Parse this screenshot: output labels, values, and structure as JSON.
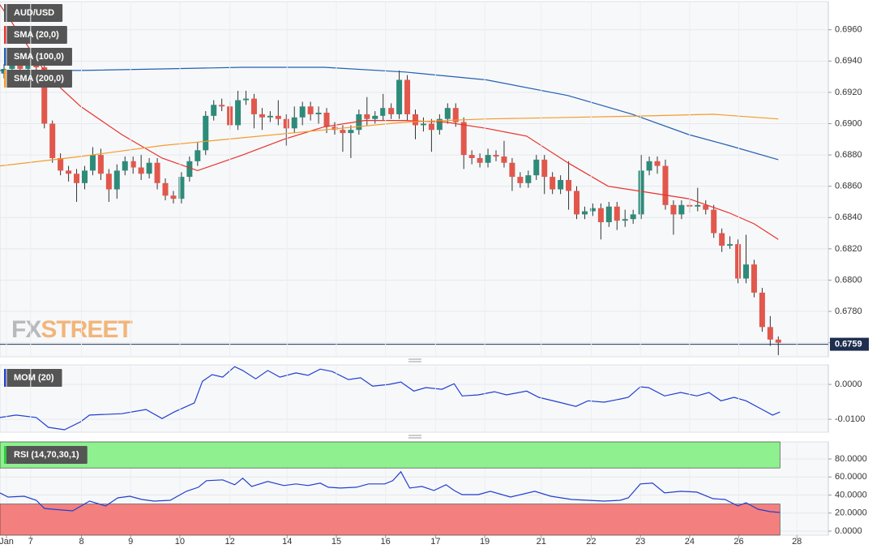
{
  "chart_data": [
    {
      "type": "candlestick",
      "name": "AUD/USD",
      "open": [
        0.6932,
        0.6935,
        0.694,
        0.6935,
        0.6938,
        0.6936,
        0.69,
        0.6878,
        0.687,
        0.6868,
        0.6862,
        0.687,
        0.688,
        0.6868,
        0.6858,
        0.687,
        0.6876,
        0.6872,
        0.6868,
        0.6875,
        0.6862,
        0.6854,
        0.6852,
        0.6866,
        0.6876,
        0.6883,
        0.6905,
        0.6912,
        0.6911,
        0.6899,
        0.6915,
        0.6916,
        0.6906,
        0.6904,
        0.6905,
        0.6903,
        0.6897,
        0.6904,
        0.6911,
        0.6906,
        0.6907,
        0.6898,
        0.6896,
        0.6894,
        0.6896,
        0.6906,
        0.6903,
        0.6905,
        0.691,
        0.6906,
        0.6928,
        0.6906,
        0.6899,
        0.69,
        0.6896,
        0.6903,
        0.691,
        0.6901,
        0.688,
        0.6878,
        0.6875,
        0.688,
        0.6879,
        0.6875,
        0.6866,
        0.6862,
        0.6867,
        0.6877,
        0.6866,
        0.6858,
        0.6864,
        0.6857,
        0.6842,
        0.6844,
        0.6846,
        0.6837,
        0.6847,
        0.6838,
        0.6839,
        0.6842,
        0.687,
        0.6876,
        0.6873,
        0.6848,
        0.6842,
        0.6848,
        0.6847,
        0.6848,
        0.6845,
        0.683,
        0.6822,
        0.6823,
        0.6801,
        0.681,
        0.6792,
        0.677,
        0.6762
      ],
      "high": [
        0.6938,
        0.6944,
        0.6943,
        0.6941,
        0.6941,
        0.694,
        0.6902,
        0.6881,
        0.6873,
        0.6871,
        0.6873,
        0.6885,
        0.6884,
        0.6871,
        0.6874,
        0.6879,
        0.6879,
        0.688,
        0.6878,
        0.6878,
        0.6865,
        0.6857,
        0.6869,
        0.6879,
        0.6888,
        0.6908,
        0.6915,
        0.6916,
        0.6914,
        0.6921,
        0.6921,
        0.6919,
        0.691,
        0.6908,
        0.6915,
        0.6906,
        0.6911,
        0.6914,
        0.6914,
        0.6911,
        0.691,
        0.6901,
        0.6899,
        0.6899,
        0.6909,
        0.6917,
        0.6908,
        0.6919,
        0.6913,
        0.6934,
        0.6931,
        0.6909,
        0.6904,
        0.6903,
        0.6906,
        0.6913,
        0.6913,
        0.6904,
        0.6883,
        0.6881,
        0.6884,
        0.6883,
        0.6889,
        0.6878,
        0.6869,
        0.687,
        0.688,
        0.688,
        0.6869,
        0.6867,
        0.6876,
        0.686,
        0.6847,
        0.6849,
        0.6849,
        0.685,
        0.685,
        0.6845,
        0.6845,
        0.688,
        0.6879,
        0.6879,
        0.6877,
        0.6851,
        0.6851,
        0.6852,
        0.6859,
        0.6851,
        0.6848,
        0.6833,
        0.6828,
        0.6826,
        0.6829,
        0.6813,
        0.6795,
        0.6777,
        0.6764
      ],
      "low": [
        0.6929,
        0.6932,
        0.6932,
        0.6932,
        0.6933,
        0.6897,
        0.6875,
        0.6867,
        0.6863,
        0.685,
        0.6858,
        0.6867,
        0.6864,
        0.685,
        0.6852,
        0.6867,
        0.6868,
        0.6864,
        0.6865,
        0.6858,
        0.6851,
        0.6849,
        0.6849,
        0.6863,
        0.6873,
        0.688,
        0.6902,
        0.6908,
        0.6896,
        0.6896,
        0.6912,
        0.6897,
        0.6896,
        0.6901,
        0.6899,
        0.6886,
        0.6894,
        0.6899,
        0.6902,
        0.69,
        0.6894,
        0.6893,
        0.6882,
        0.6878,
        0.6893,
        0.6899,
        0.69,
        0.6902,
        0.6903,
        0.6903,
        0.6902,
        0.689,
        0.6895,
        0.6882,
        0.6893,
        0.69,
        0.6898,
        0.6871,
        0.6874,
        0.6872,
        0.6872,
        0.6876,
        0.6872,
        0.6857,
        0.6859,
        0.6859,
        0.6864,
        0.6855,
        0.6855,
        0.6855,
        0.6845,
        0.6839,
        0.6839,
        0.6841,
        0.6826,
        0.6834,
        0.6832,
        0.6834,
        0.6836,
        0.6839,
        0.6867,
        0.6868,
        0.6845,
        0.6829,
        0.6839,
        0.6843,
        0.6844,
        0.6842,
        0.6827,
        0.6818,
        0.682,
        0.6798,
        0.6798,
        0.6789,
        0.6767,
        0.6758,
        0.6752
      ],
      "close": [
        0.6935,
        0.694,
        0.6935,
        0.6938,
        0.6936,
        0.69,
        0.6878,
        0.687,
        0.6868,
        0.6862,
        0.687,
        0.688,
        0.6868,
        0.6858,
        0.687,
        0.6876,
        0.6872,
        0.6868,
        0.6875,
        0.6862,
        0.6854,
        0.6852,
        0.6866,
        0.6876,
        0.6883,
        0.6905,
        0.6912,
        0.6911,
        0.6899,
        0.6915,
        0.6916,
        0.6906,
        0.6904,
        0.6905,
        0.6903,
        0.6897,
        0.6904,
        0.6911,
        0.6906,
        0.6907,
        0.6898,
        0.6896,
        0.6894,
        0.6896,
        0.6906,
        0.6903,
        0.6905,
        0.691,
        0.6906,
        0.6928,
        0.6906,
        0.6899,
        0.69,
        0.6896,
        0.6903,
        0.691,
        0.6901,
        0.688,
        0.6878,
        0.6875,
        0.688,
        0.6879,
        0.6875,
        0.6866,
        0.6862,
        0.6867,
        0.6877,
        0.6866,
        0.6858,
        0.6864,
        0.6857,
        0.6842,
        0.6844,
        0.6846,
        0.6837,
        0.6847,
        0.6838,
        0.6839,
        0.6842,
        0.687,
        0.6876,
        0.6873,
        0.6848,
        0.6842,
        0.6848,
        0.6847,
        0.6848,
        0.6845,
        0.683,
        0.6822,
        0.6823,
        0.6801,
        0.681,
        0.6792,
        0.677,
        0.6762,
        0.676
      ],
      "up_color": "#2e8b7a",
      "down_color": "#e2574c",
      "series": [
        {
          "name": "SMA (20,0)",
          "color": "#e8322a",
          "x": [
            -0.5,
            5.5,
            9.5,
            14.6,
            19.6,
            24,
            29.6,
            34.7,
            39.7,
            44.7,
            49.7,
            54.8,
            59.8,
            64.8,
            69.9,
            74.9,
            79.9,
            84.9,
            89.9,
            93,
            96
          ],
          "values": [
            0.6976,
            0.693,
            0.6911,
            0.6893,
            0.6878,
            0.687,
            0.688,
            0.689,
            0.6898,
            0.6902,
            0.6902,
            0.6901,
            0.6897,
            0.6892,
            0.6875,
            0.686,
            0.6856,
            0.6852,
            0.6843,
            0.6836,
            0.6826
          ]
        },
        {
          "name": "SMA (100,0)",
          "color": "#2060b0",
          "x": [
            -0.5,
            9.5,
            19.6,
            29.6,
            39.7,
            49.7,
            59.8,
            69.9,
            77.9,
            84.9,
            89.9,
            96
          ],
          "values": [
            0.6934,
            0.6934,
            0.6935,
            0.6936,
            0.6936,
            0.6933,
            0.6928,
            0.6918,
            0.6906,
            0.6893,
            0.6886,
            0.6877
          ]
        },
        {
          "name": "SMA (200,0)",
          "color": "#f39c2a",
          "x": [
            -0.5,
            9.5,
            19.6,
            29.6,
            39.7,
            49.7,
            59.8,
            69.9,
            79.9,
            87.9,
            96
          ],
          "values": [
            0.6873,
            0.6879,
            0.6886,
            0.6891,
            0.6896,
            0.6901,
            0.6903,
            0.6904,
            0.6905,
            0.6906,
            0.6903
          ]
        }
      ],
      "last_price": 0.6759,
      "watermark": [
        "FX",
        "STREET"
      ],
      "xlim": [
        -0.5,
        102.2
      ],
      "ylim": [
        0.6751,
        0.6978
      ],
      "yticks": [
        {
          "value": 0.676,
          "label": "0.6760"
        },
        {
          "value": 0.678,
          "label": "0.6780"
        },
        {
          "value": 0.68,
          "label": "0.6800"
        },
        {
          "value": 0.682,
          "label": "0.6820"
        },
        {
          "value": 0.684,
          "label": "0.6840"
        },
        {
          "value": 0.686,
          "label": "0.6860"
        },
        {
          "value": 0.688,
          "label": "0.6880"
        },
        {
          "value": 0.69,
          "label": "0.6900"
        },
        {
          "value": 0.692,
          "label": "0.6920"
        },
        {
          "value": 0.694,
          "label": "0.6940"
        },
        {
          "value": 0.696,
          "label": "0.6960"
        }
      ],
      "grid": true
    },
    {
      "type": "line",
      "series": [
        {
          "name": "MOM (20)",
          "color": "#1f3fd0",
          "x": [
            -0.5,
            1.5,
            4,
            5.5,
            7.5,
            9.5,
            10.6,
            14.6,
            17.6,
            19.6,
            21.1,
            23.6,
            24.6,
            25.8,
            27.1,
            28.6,
            29.6,
            31.2,
            32.7,
            34.2,
            36.2,
            37.7,
            39.2,
            40.7,
            42.7,
            44.2,
            45.7,
            47.7,
            49.2,
            50.8,
            52.3,
            54.3,
            55.8,
            56.8,
            58.8,
            60.8,
            62.3,
            64.8,
            66.3,
            68.8,
            70.9,
            72.4,
            74.4,
            76.4,
            77.4,
            78.9,
            79.9,
            81.9,
            83.9,
            85.9,
            87.4,
            88.9,
            90.5,
            92,
            94,
            95.3,
            96.2
          ],
          "values": [
            -0.0095,
            -0.0088,
            -0.0095,
            -0.0123,
            -0.013,
            -0.0107,
            -0.0088,
            -0.0084,
            -0.0072,
            -0.0098,
            -0.0079,
            -0.0053,
            0.0009,
            0.0028,
            0.0021,
            0.0051,
            0.004,
            0.0016,
            0.004,
            0.0021,
            0.0033,
            0.0026,
            0.0044,
            0.0037,
            0.0014,
            0.0019,
            -0.0005,
            0.0,
            0.0007,
            -0.0019,
            -0.0009,
            -0.0014,
            0.0002,
            -0.0033,
            -0.003,
            -0.0021,
            -0.003,
            -0.0019,
            -0.0037,
            -0.0051,
            -0.0063,
            -0.0047,
            -0.0051,
            -0.0042,
            -0.0037,
            -0.0007,
            -0.0009,
            -0.0033,
            -0.0023,
            -0.0033,
            -0.0023,
            -0.0047,
            -0.0037,
            -0.0047,
            -0.0072,
            -0.0088,
            -0.0079
          ]
        }
      ],
      "xlim": [
        -0.5,
        102.2
      ],
      "ylim": [
        -0.0137,
        0.0056
      ],
      "yticks": [
        {
          "value": -0.01,
          "label": "-0.0100"
        },
        {
          "value": 0,
          "label": "0.0000"
        }
      ],
      "grid": true
    },
    {
      "type": "line",
      "series": [
        {
          "name": "RSI (14,70,30,1)",
          "color": "#1f3fd0",
          "x": [
            -0.5,
            0.5,
            2.5,
            4,
            5,
            6,
            8.5,
            10.6,
            12.6,
            14.1,
            15.6,
            17.1,
            18.6,
            20.6,
            22.6,
            24.1,
            25.1,
            27.1,
            28.6,
            29.6,
            30.7,
            32.7,
            34.7,
            36.2,
            37.7,
            39.2,
            40.2,
            41.7,
            43.7,
            45.2,
            47.2,
            48.2,
            49.2,
            50.3,
            51.8,
            53.3,
            54.8,
            55.8,
            56.8,
            58.8,
            60.3,
            62.8,
            65.8,
            67.8,
            70.4,
            72.4,
            74.4,
            76.4,
            77.4,
            78.9,
            80.4,
            81.9,
            83.9,
            85.9,
            87.9,
            89.4,
            91,
            92,
            93.5,
            95,
            96.2
          ],
          "values": [
            42.3,
            37.8,
            38.7,
            34.2,
            25.2,
            24.3,
            22.5,
            33.3,
            27.9,
            36.9,
            38.7,
            35.1,
            33.3,
            34.2,
            44.1,
            48.6,
            55.9,
            56.8,
            51.4,
            58.6,
            49.5,
            55,
            50.5,
            52.3,
            50.5,
            53.2,
            48.6,
            47.7,
            48.6,
            52.3,
            52.3,
            55.9,
            65.8,
            47.7,
            49.5,
            45,
            51.4,
            45,
            40.5,
            40.5,
            44.1,
            37.8,
            44.1,
            38.7,
            35.1,
            34.2,
            33.3,
            34.2,
            36.9,
            52.3,
            53.2,
            42.3,
            44.1,
            43.2,
            36,
            35.1,
            27.9,
            31.5,
            24.3,
            21.6,
            20.7
          ]
        }
      ],
      "overbought": 70,
      "oversold": 30,
      "overbought_color": "#8ef08e",
      "oversold_color": "#f47f7f",
      "xlim": [
        -0.5,
        102.2
      ],
      "ylim": [
        -4.5,
        98.9
      ],
      "yticks": [
        {
          "value": 0,
          "label": "0.0000"
        },
        {
          "value": 20,
          "label": "20.0000"
        },
        {
          "value": 40,
          "label": "40.0000"
        },
        {
          "value": 60,
          "label": "60.0000"
        },
        {
          "value": 80,
          "label": "80.0000"
        }
      ],
      "xticks": [
        {
          "value": 0.3,
          "label": "Jan"
        },
        {
          "value": 3.3,
          "label": "7"
        },
        {
          "value": 9.6,
          "label": "8"
        },
        {
          "value": 15.7,
          "label": "9"
        },
        {
          "value": 21.8,
          "label": "10"
        },
        {
          "value": 28.0,
          "label": "12"
        },
        {
          "value": 35.1,
          "label": "14"
        },
        {
          "value": 41.2,
          "label": "15"
        },
        {
          "value": 47.3,
          "label": "16"
        },
        {
          "value": 53.5,
          "label": "17"
        },
        {
          "value": 59.6,
          "label": "19"
        },
        {
          "value": 66.6,
          "label": "21"
        },
        {
          "value": 72.8,
          "label": "22"
        },
        {
          "value": 78.9,
          "label": "23"
        },
        {
          "value": 85.0,
          "label": "24"
        },
        {
          "value": 91.1,
          "label": "26"
        },
        {
          "value": 98.3,
          "label": "28"
        }
      ],
      "grid": true
    }
  ]
}
